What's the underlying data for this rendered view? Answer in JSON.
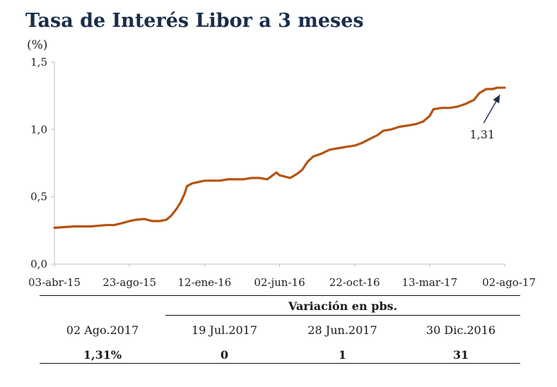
{
  "chart_data": {
    "type": "line",
    "title": "Tasa de Interés Libor a 3 meses",
    "ylabel": "(%)",
    "ylim": [
      0,
      1.5
    ],
    "yticks": [
      "0,0",
      "0,5",
      "1,0",
      "1,5"
    ],
    "xtick_labels": [
      "03-abr-15",
      "23-ago-15",
      "12-ene-16",
      "02-jun-16",
      "22-oct-16",
      "13-mar-17",
      "02-ago-17"
    ],
    "x_start": "2015-04-03",
    "x_end": "2017-08-02",
    "series": [
      {
        "color": "#b5530f",
        "points": [
          [
            "2015-04-03",
            0.27
          ],
          [
            "2015-04-20",
            0.275
          ],
          [
            "2015-05-10",
            0.28
          ],
          [
            "2015-05-25",
            0.28
          ],
          [
            "2015-06-10",
            0.28
          ],
          [
            "2015-06-25",
            0.285
          ],
          [
            "2015-07-10",
            0.29
          ],
          [
            "2015-07-25",
            0.29
          ],
          [
            "2015-08-10",
            0.305
          ],
          [
            "2015-08-23",
            0.32
          ],
          [
            "2015-09-05",
            0.33
          ],
          [
            "2015-09-20",
            0.335
          ],
          [
            "2015-10-05",
            0.32
          ],
          [
            "2015-10-20",
            0.32
          ],
          [
            "2015-11-01",
            0.33
          ],
          [
            "2015-11-10",
            0.36
          ],
          [
            "2015-11-20",
            0.41
          ],
          [
            "2015-11-28",
            0.46
          ],
          [
            "2015-12-05",
            0.52
          ],
          [
            "2015-12-10",
            0.58
          ],
          [
            "2015-12-20",
            0.6
          ],
          [
            "2016-01-01",
            0.61
          ],
          [
            "2016-01-12",
            0.62
          ],
          [
            "2016-01-25",
            0.62
          ],
          [
            "2016-02-10",
            0.62
          ],
          [
            "2016-02-25",
            0.63
          ],
          [
            "2016-03-10",
            0.63
          ],
          [
            "2016-03-25",
            0.63
          ],
          [
            "2016-04-10",
            0.64
          ],
          [
            "2016-04-25",
            0.64
          ],
          [
            "2016-05-10",
            0.63
          ],
          [
            "2016-05-20",
            0.66
          ],
          [
            "2016-05-27",
            0.68
          ],
          [
            "2016-06-02",
            0.66
          ],
          [
            "2016-06-12",
            0.65
          ],
          [
            "2016-06-22",
            0.64
          ],
          [
            "2016-07-05",
            0.67
          ],
          [
            "2016-07-15",
            0.7
          ],
          [
            "2016-07-25",
            0.76
          ],
          [
            "2016-08-05",
            0.8
          ],
          [
            "2016-08-20",
            0.82
          ],
          [
            "2016-09-05",
            0.85
          ],
          [
            "2016-09-20",
            0.86
          ],
          [
            "2016-10-05",
            0.87
          ],
          [
            "2016-10-22",
            0.88
          ],
          [
            "2016-11-05",
            0.9
          ],
          [
            "2016-11-20",
            0.93
          ],
          [
            "2016-12-05",
            0.96
          ],
          [
            "2016-12-15",
            0.99
          ],
          [
            "2016-12-30",
            1.0
          ],
          [
            "2017-01-15",
            1.02
          ],
          [
            "2017-02-01",
            1.03
          ],
          [
            "2017-02-15",
            1.04
          ],
          [
            "2017-03-01",
            1.06
          ],
          [
            "2017-03-13",
            1.1
          ],
          [
            "2017-03-20",
            1.15
          ],
          [
            "2017-04-05",
            1.16
          ],
          [
            "2017-04-20",
            1.16
          ],
          [
            "2017-05-05",
            1.17
          ],
          [
            "2017-05-20",
            1.19
          ],
          [
            "2017-06-05",
            1.22
          ],
          [
            "2017-06-15",
            1.27
          ],
          [
            "2017-06-28",
            1.3
          ],
          [
            "2017-07-10",
            1.3
          ],
          [
            "2017-07-19",
            1.31
          ],
          [
            "2017-08-02",
            1.31
          ]
        ]
      }
    ],
    "annotation": {
      "text": "1,31",
      "x": "2017-07-28",
      "y": 1.31
    }
  },
  "table": {
    "group_header": "Variación en pbs.",
    "columns": [
      "02 Ago.2017",
      "19 Jul.2017",
      "28 Jun.2017",
      "30 Dic.2016"
    ],
    "values": [
      "1,31%",
      "0",
      "1",
      "31"
    ]
  }
}
